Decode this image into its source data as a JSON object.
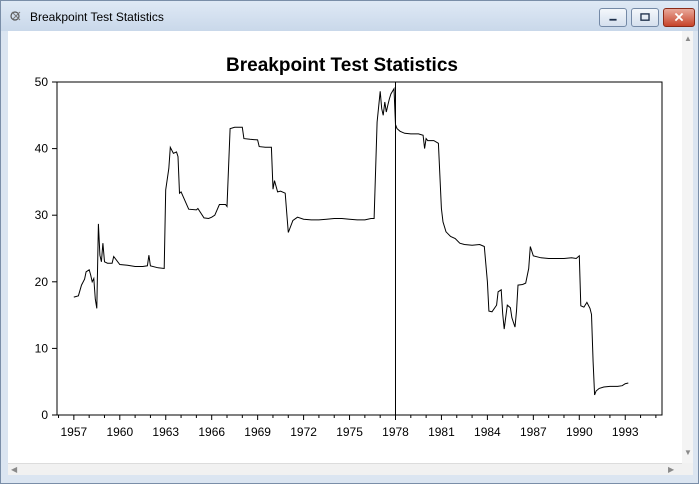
{
  "window": {
    "title": "Breakpoint Test Statistics",
    "controls": {
      "minimize": "minimize-icon",
      "maximize": "maximize-icon",
      "close": "close-icon"
    }
  },
  "chart_data": {
    "type": "line",
    "title": "Breakpoint Test Statistics",
    "xlabel": "",
    "ylabel": "",
    "xlim": [
      1955.9,
      1995.4
    ],
    "ylim": [
      0,
      50
    ],
    "yticks": [
      0,
      10,
      20,
      30,
      40,
      50
    ],
    "xticks": [
      1957,
      1960,
      1963,
      1966,
      1969,
      1972,
      1975,
      1978,
      1981,
      1984,
      1987,
      1990,
      1993
    ],
    "grid": false,
    "legend": "none",
    "vline": 1978.0,
    "line_color": "#000000",
    "x": [
      1957.0,
      1957.3,
      1957.5,
      1957.7,
      1957.8,
      1958.0,
      1958.1,
      1958.2,
      1958.3,
      1958.4,
      1958.5,
      1958.6,
      1958.7,
      1958.8,
      1958.9,
      1959.0,
      1959.2,
      1959.5,
      1959.6,
      1960.0,
      1960.5,
      1961.0,
      1961.5,
      1961.8,
      1961.9,
      1962.0,
      1962.5,
      1962.9,
      1963.0,
      1963.2,
      1963.3,
      1963.5,
      1963.7,
      1963.8,
      1963.9,
      1964.0,
      1964.5,
      1965.0,
      1965.1,
      1965.5,
      1965.8,
      1966.0,
      1966.2,
      1966.5,
      1966.9,
      1967.0,
      1967.2,
      1967.5,
      1968.0,
      1968.1,
      1968.5,
      1969.0,
      1969.1,
      1969.5,
      1969.9,
      1970.0,
      1970.1,
      1970.3,
      1970.5,
      1970.8,
      1970.9,
      1971.0,
      1971.3,
      1971.6,
      1972.0,
      1972.5,
      1973.0,
      1973.5,
      1974.0,
      1974.5,
      1975.0,
      1975.5,
      1976.0,
      1976.4,
      1976.6,
      1976.8,
      1977.0,
      1977.1,
      1977.2,
      1977.3,
      1977.4,
      1977.5,
      1977.6,
      1977.7,
      1977.9,
      1978.0,
      1978.1,
      1978.3,
      1978.6,
      1979.0,
      1979.5,
      1979.8,
      1979.9,
      1980.0,
      1980.1,
      1980.5,
      1980.8,
      1981.0,
      1981.1,
      1981.3,
      1981.6,
      1981.9,
      1982.2,
      1982.5,
      1983.0,
      1983.5,
      1983.8,
      1984.0,
      1984.1,
      1984.3,
      1984.6,
      1984.7,
      1984.9,
      1985.0,
      1985.1,
      1985.3,
      1985.5,
      1985.6,
      1985.8,
      1985.9,
      1986.0,
      1986.3,
      1986.5,
      1986.7,
      1986.8,
      1987.0,
      1987.5,
      1988.0,
      1988.5,
      1989.0,
      1989.5,
      1989.8,
      1990.0,
      1990.1,
      1990.3,
      1990.5,
      1990.7,
      1990.8,
      1990.9,
      1991.0,
      1991.1,
      1991.3,
      1991.6,
      1992.0,
      1992.5,
      1992.8,
      1993.0,
      1993.2
    ],
    "y": [
      17.7,
      17.9,
      19.5,
      20.4,
      21.5,
      21.8,
      21.0,
      20.0,
      20.5,
      17.4,
      16.0,
      28.7,
      24.0,
      23.0,
      25.8,
      23.0,
      22.8,
      22.8,
      23.8,
      22.6,
      22.5,
      22.3,
      22.3,
      22.4,
      24.0,
      22.4,
      22.1,
      22.0,
      33.8,
      37.0,
      40.2,
      39.3,
      39.5,
      38.8,
      33.3,
      33.5,
      30.9,
      30.8,
      31.0,
      29.6,
      29.5,
      29.7,
      30.0,
      31.6,
      31.6,
      31.3,
      43.0,
      43.2,
      43.2,
      41.5,
      41.4,
      41.3,
      40.3,
      40.2,
      40.2,
      33.9,
      35.2,
      33.5,
      33.6,
      33.3,
      30.4,
      27.4,
      29.2,
      29.7,
      29.4,
      29.3,
      29.3,
      29.4,
      29.5,
      29.5,
      29.4,
      29.3,
      29.3,
      29.5,
      29.5,
      44.0,
      48.6,
      46.0,
      45.0,
      47.0,
      45.5,
      46.5,
      47.5,
      48.2,
      49.0,
      43.6,
      43.0,
      42.6,
      42.3,
      42.2,
      42.2,
      42.0,
      40.0,
      41.5,
      41.2,
      41.2,
      40.8,
      31.0,
      29.0,
      27.5,
      26.8,
      26.5,
      25.8,
      25.6,
      25.5,
      25.6,
      25.3,
      20.0,
      15.6,
      15.5,
      16.5,
      18.5,
      18.8,
      15.2,
      12.9,
      16.5,
      16.1,
      14.6,
      13.2,
      15.6,
      19.5,
      19.6,
      19.8,
      22.0,
      25.3,
      23.9,
      23.6,
      23.5,
      23.5,
      23.5,
      23.6,
      23.5,
      23.9,
      16.4,
      16.2,
      16.9,
      16.0,
      15.1,
      8.0,
      3.0,
      3.6,
      4.0,
      4.2,
      4.3,
      4.3,
      4.4,
      4.7,
      4.8
    ]
  }
}
